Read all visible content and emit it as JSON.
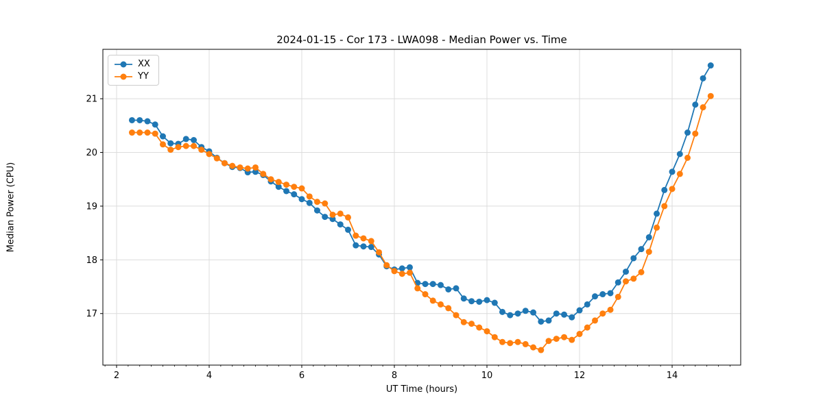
{
  "title": "2024-01-15 - Cor 173 - LWA098 - Median Power vs. Time",
  "chart_data": {
    "type": "line",
    "title": "2024-01-15 - Cor 173 - LWA098 - Median Power vs. Time",
    "xlabel": "UT Time (hours)",
    "ylabel": "Median Power (CPU)",
    "xlim": [
      1.704,
      15.481
    ],
    "ylim": [
      16.04,
      21.92
    ],
    "x_ticks": [
      2,
      4,
      6,
      8,
      10,
      12,
      14
    ],
    "y_ticks": [
      17,
      18,
      19,
      20,
      21
    ],
    "x_minor_step": 0.25,
    "grid": true,
    "legend_position": "upper left",
    "marker": "o",
    "x": [
      2.333,
      2.5,
      2.667,
      2.833,
      3.0,
      3.167,
      3.333,
      3.5,
      3.667,
      3.833,
      4.0,
      4.167,
      4.333,
      4.5,
      4.667,
      4.833,
      5.0,
      5.167,
      5.333,
      5.5,
      5.667,
      5.833,
      6.0,
      6.167,
      6.333,
      6.5,
      6.667,
      6.833,
      7.0,
      7.167,
      7.333,
      7.5,
      7.667,
      7.833,
      8.0,
      8.167,
      8.333,
      8.5,
      8.667,
      8.833,
      9.0,
      9.167,
      9.333,
      9.5,
      9.667,
      9.833,
      10.0,
      10.167,
      10.333,
      10.5,
      10.667,
      10.833,
      11.0,
      11.167,
      11.333,
      11.5,
      11.667,
      11.833,
      12.0,
      12.167,
      12.333,
      12.5,
      12.667,
      12.833,
      13.0,
      13.167,
      13.333,
      13.5,
      13.667,
      13.833,
      14.0,
      14.167,
      14.333,
      14.5,
      14.667,
      14.833
    ],
    "series": [
      {
        "name": "XX",
        "color": "#1f77b4",
        "values": [
          20.6,
          20.6,
          20.58,
          20.52,
          20.3,
          20.17,
          20.16,
          20.25,
          20.23,
          20.1,
          20.02,
          19.9,
          19.8,
          19.73,
          19.71,
          19.63,
          19.64,
          19.58,
          19.46,
          19.36,
          19.28,
          19.22,
          19.13,
          19.06,
          18.92,
          18.8,
          18.76,
          18.66,
          18.56,
          18.27,
          18.25,
          18.24,
          18.1,
          17.88,
          17.82,
          17.84,
          17.86,
          17.57,
          17.55,
          17.55,
          17.53,
          17.45,
          17.47,
          17.28,
          17.23,
          17.22,
          17.25,
          17.2,
          17.03,
          16.97,
          17.0,
          17.05,
          17.02,
          16.85,
          16.87,
          17.0,
          16.98,
          16.93,
          17.06,
          17.17,
          17.32,
          17.36,
          17.38,
          17.58,
          17.78,
          18.03,
          18.2,
          18.42,
          18.86,
          19.3,
          19.64,
          19.97,
          20.37,
          20.89,
          21.38,
          21.62
        ]
      },
      {
        "name": "YY",
        "color": "#ff7f0e",
        "values": [
          20.37,
          20.37,
          20.37,
          20.35,
          20.15,
          20.05,
          20.1,
          20.12,
          20.12,
          20.05,
          19.97,
          19.89,
          19.8,
          19.75,
          19.72,
          19.7,
          19.72,
          19.6,
          19.5,
          19.45,
          19.4,
          19.36,
          19.33,
          19.18,
          19.08,
          19.05,
          18.84,
          18.86,
          18.79,
          18.45,
          18.4,
          18.35,
          18.14,
          17.9,
          17.79,
          17.74,
          17.76,
          17.47,
          17.36,
          17.24,
          17.17,
          17.1,
          16.97,
          16.84,
          16.81,
          16.74,
          16.67,
          16.56,
          16.47,
          16.45,
          16.47,
          16.43,
          16.37,
          16.32,
          16.49,
          16.53,
          16.56,
          16.51,
          16.62,
          16.74,
          16.87,
          17.0,
          17.07,
          17.31,
          17.6,
          17.65,
          17.77,
          18.15,
          18.6,
          19.0,
          19.32,
          19.6,
          19.9,
          20.35,
          20.84,
          21.05
        ]
      }
    ]
  },
  "legend": {
    "items": [
      {
        "label": "XX",
        "color": "#1f77b4"
      },
      {
        "label": "YY",
        "color": "#ff7f0e"
      }
    ]
  },
  "colors": {
    "series_xx": "#1f77b4",
    "series_yy": "#ff7f0e",
    "grid": "#dcdcdc",
    "spine": "#000000",
    "background": "#ffffff"
  }
}
